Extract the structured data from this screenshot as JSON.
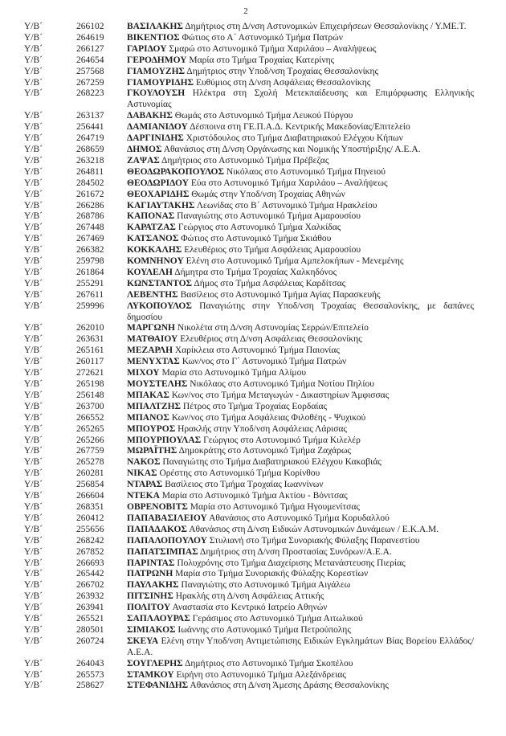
{
  "page": {
    "number": "2"
  },
  "list": {
    "entries": [
      {
        "rank": "Υ/Β´",
        "id": "266102",
        "name": "ΒΑΣΙΛΑΚΗΣ",
        "details": "Δημήτριος στη Δ/νση Αστυνομικών Επιχειρήσεων Θεσσαλονίκης / Υ.ΜΕ.Τ."
      },
      {
        "rank": "Υ/Β´",
        "id": "264619",
        "name": "ΒΙΚΕΝΤΙΟΣ",
        "details": "Φώτιος στο Α´ Αστυνομικό Τμήμα Πατρών"
      },
      {
        "rank": "Υ/Β´",
        "id": "266127",
        "name": "ΓΑΡΙΔΟΥ",
        "details": "Σμαρώ στο Αστυνομικό Τμήμα Χαριλάου – Αναλήψεως"
      },
      {
        "rank": "Υ/Β´",
        "id": "264654",
        "name": "ΓΕΡΟΔΗΜΟΥ",
        "details": "Μαρία στο Τμήμα Τροχαίας Κατερίνης"
      },
      {
        "rank": "Υ/Β´",
        "id": "257568",
        "name": "ΓΙΑΜΟΥΖΗΣ",
        "details": "Δημήτριος στην Υποδ/νση Τροχαίας Θεσσαλονίκης"
      },
      {
        "rank": "Υ/Β´",
        "id": "267259",
        "name": "ΓΙΑΜΟΥΡΙΔΗΣ",
        "details": "Ευθύμιος στη Δ/νση Ασφάλειας Θεσσαλονίκης"
      },
      {
        "rank": "Υ/Β´",
        "id": "268223",
        "name": "ΓΚΟΥΛΟΥΣΗ",
        "details": "Ηλέκτρα στη Σχολή Μετεκπαίδευσης και Επιμόρφωσης Ελληνικής Αστυνομίας"
      },
      {
        "rank": "Υ/Β´",
        "id": "263137",
        "name": "ΔΑΒΑΚΗΣ",
        "details": "Θωμάς στο Αστυνομικό Τμήμα Λευκού Πύργου"
      },
      {
        "rank": "Υ/Β´",
        "id": "256441",
        "name": "ΔΑΜΙΑΝΙΔΟΥ",
        "details": "Δέσποινα στη ΓΕ.Π.Α.Δ. Κεντρικής Μακεδονίας/Επιτελείο"
      },
      {
        "rank": "Υ/Β´",
        "id": "264719",
        "name": "ΔΑΡΓΙΝΙΔΗΣ",
        "details": "Χριστόδουλος στο Τμήμα Διαβατηριακού Ελέγχου Κήπων"
      },
      {
        "rank": "Υ/Β´",
        "id": "268659",
        "name": "ΔΗΜΟΣ",
        "details": "Αθανάσιος στη Δ/νση Οργάνωσης και Νομικής Υποστήριξης/ Α.Ε.Α."
      },
      {
        "rank": "Υ/Β´",
        "id": "263218",
        "name": "ΖΑΨΑΣ",
        "details": "Δημήτριος στο Αστυνομικό Τμήμα Πρέβεζας"
      },
      {
        "rank": "Υ/Β´",
        "id": "264811",
        "name": "ΘΕΟΔΩΡΑΚΟΠΟΥΛΟΣ",
        "details": "Νικόλαος στο Αστυνομικό Τμήμα Πηνειού"
      },
      {
        "rank": "Υ/Β´",
        "id": "284502",
        "name": "ΘΕΟΔΩΡΙΔΟΥ",
        "details": "Εύα στο Αστυνομικό Τμήμα Χαριλάου – Αναλήψεως"
      },
      {
        "rank": "Υ/Β´",
        "id": "261672",
        "name": "ΘΕΟΧΑΡΙΔΗΣ",
        "details": "Θωμάς στην Υποδ/νση Τροχαίας Αθηνών"
      },
      {
        "rank": "Υ/Β´",
        "id": "266286",
        "name": "ΚΑΓΙΑΥΤΑΚΗΣ",
        "details": "Λεωνίδας στο Β´ Αστυνομικό Τμήμα Ηρακλείου"
      },
      {
        "rank": "Υ/Β´",
        "id": "268786",
        "name": "ΚΑΠΟΝΑΣ",
        "details": "Παναγιώτης στο Αστυνομικό Τμήμα Αμαρουσίου"
      },
      {
        "rank": "Υ/Β´",
        "id": "267448",
        "name": "ΚΑΡΑΤΖΑΣ",
        "details": "Γεώργιος στο Αστυνομικό Τμήμα Χαλκίδας"
      },
      {
        "rank": "Υ/Β´",
        "id": "267469",
        "name": "ΚΑΤΣΑΝΟΣ",
        "details": "Φώτιος στο Αστυνομικό Τμήμα Σκιάθου"
      },
      {
        "rank": "Υ/Β´",
        "id": "266382",
        "name": "ΚΟΚΚΑΛΗΣ",
        "details": "Ελευθέριος στο Τμήμα Ασφάλειας Αμαρουσίου"
      },
      {
        "rank": "Υ/Β´",
        "id": "259798",
        "name": "ΚΟΜΝΗΝΟΥ",
        "details": "Ελένη στο Αστυνομικό Τμήμα Αμπελοκήπων - Μενεμένης"
      },
      {
        "rank": "Υ/Β´",
        "id": "261864",
        "name": "ΚΟΥΛΕΛΗ",
        "details": "Δήμητρα στο Τμήμα Τροχαίας Χαλκηδόνος"
      },
      {
        "rank": "Υ/Β´",
        "id": "255291",
        "name": "ΚΩΝΣΤΑΝΤΟΣ",
        "details": "Δήμος στο Τμήμα Ασφάλειας Καρδίτσας"
      },
      {
        "rank": "Υ/Β´",
        "id": "267611",
        "name": "ΛΕΒΕΝΤΗΣ",
        "details": "Βασίλειος στο Αστυνομικό Τμήμα Αγίας Παρασκευής"
      },
      {
        "rank": "Υ/Β´",
        "id": "259996",
        "name": "ΛΥΚΟΠΟΥΛΟΣ",
        "details": "Παναγιώτης στην Υποδ/νση Τροχαίας Θεσσαλονίκης, με δαπάνες δημοσίου"
      },
      {
        "rank": "Υ/Β´",
        "id": "262010",
        "name": "ΜΑΡΓΩΝΗ",
        "details": "Νικολέτα στη Δ/νση Αστυνομίας Σερρών/Επιτελείο"
      },
      {
        "rank": "Υ/Β´",
        "id": "263631",
        "name": "ΜΑΤΘΑΙΟΥ",
        "details": "Ελευθέριος στη Δ/νση Ασφάλειας Θεσσαλονίκης"
      },
      {
        "rank": "Υ/Β´",
        "id": "265161",
        "name": "ΜΕΖΑΡΛΗ",
        "details": "Χαρίκλεια στο Αστυνομικό Τμήμα Παιονίας"
      },
      {
        "rank": "Υ/Β´",
        "id": "260117",
        "name": "ΜΕΝΥΧΤΑΣ",
        "details": "Κων/νος στο Γ´ Αστυνομικό Τμήμα Πατρών"
      },
      {
        "rank": "Υ/Β´",
        "id": "272621",
        "name": "ΜΙΧΟΥ",
        "details": "Μαρία στο Αστυνομικό Τμήμα Αλίμου"
      },
      {
        "rank": "Υ/Β´",
        "id": "265198",
        "name": "ΜΟΥΣΤΕΛΗΣ",
        "details": "Νικόλαος στο Αστυνομικό Τμήμα Νοτίου Πηλίου"
      },
      {
        "rank": "Υ/Β´",
        "id": "256148",
        "name": "ΜΠΑΚΑΣ",
        "details": "Κων/νος στο Τμήμα Μεταγωγών - Δικαστηρίων Άμφισσας"
      },
      {
        "rank": "Υ/Β´",
        "id": "263700",
        "name": "ΜΠΑΛΤΖΗΣ",
        "details": "Πέτρος στο Τμήμα Τροχαίας Εορδαίας"
      },
      {
        "rank": "Υ/Β´",
        "id": "266552",
        "name": "ΜΠΑΝΟΣ",
        "details": "Κων/νος στο Τμήμα Ασφάλειας Φιλοθέης - Ψυχικού"
      },
      {
        "rank": "Υ/Β´",
        "id": "265265",
        "name": "ΜΠΟΥΡΟΣ",
        "details": "Ηρακλής στην Υποδ/νση Ασφάλειας Λάρισας"
      },
      {
        "rank": "Υ/Β´",
        "id": "265266",
        "name": "ΜΠΟΥΡΠΟΥΛΑΣ",
        "details": "Γεώργιος στο Αστυνομικό Τμήμα Κιλελέρ"
      },
      {
        "rank": "Υ/Β´",
        "id": "267759",
        "name": "ΜΩΡΑΪΤΗΣ",
        "details": "Δημοκράτης στο Αστυνομικό Τμήμα Ζαχάρως"
      },
      {
        "rank": "Υ/Β´",
        "id": "265278",
        "name": "ΝΑΚΟΣ",
        "details": "Παναγιώτης στο Τμήμα Διαβατηριακού Ελέγχου Κακαβιάς"
      },
      {
        "rank": "Υ/Β´",
        "id": "260281",
        "name": "ΝΙΚΑΣ",
        "details": "Ορέστης στο Αστυνομικό Τμήμα Κορίνθου"
      },
      {
        "rank": "Υ/Β´",
        "id": "256854",
        "name": "ΝΤΑΡΑΣ",
        "details": "Βασίλειος στο Τμήμα Τροχαίας Ιωαννίνων"
      },
      {
        "rank": "Υ/Β´",
        "id": "266604",
        "name": "ΝΤΕΚΑ",
        "details": "Μαρία στο Αστυνομικό Τμήμα Ακτίου - Βόνιτσας"
      },
      {
        "rank": "Υ/Β´",
        "id": "268351",
        "name": "ΟΒΡΕΝΟΒΙΤΣ",
        "details": "Μαρία στο Αστυνομικό Τμήμα Ηγουμενίτσας"
      },
      {
        "rank": "Υ/Β´",
        "id": "260412",
        "name": "ΠΑΠΑΒΑΣΙΛΕΙΟΥ",
        "details": "Αθανάσιος στο Αστυνομικό Τμήμα Κορυδαλλού"
      },
      {
        "rank": "Υ/Β´",
        "id": "255656",
        "name": "ΠΑΠΑΔΑΚΟΣ",
        "details": "Αθανάσιος στη Δ/νση Ειδικών Αστυνομικών Δυνάμεων / Ε.Κ.Α.Μ."
      },
      {
        "rank": "Υ/Β´",
        "id": "268242",
        "name": "ΠΑΠΑΛΟΠΟΥΛΟΥ",
        "details": "Στυλιανή στο Τμήμα Συνοριακής Φύλαξης Παρανεστίου"
      },
      {
        "rank": "Υ/Β´",
        "id": "267852",
        "name": "ΠΑΠΑΤΣΙΜΠΑΣ",
        "details": "Δημήτριος στη Δ/νση Προστασίας Συνόρων/Α.Ε.Α."
      },
      {
        "rank": "Υ/Β´",
        "id": "266693",
        "name": "ΠΑΡΙΝΤΑΣ",
        "details": "Πολυχρόνης στο Τμήμα Διαχείρισης Μετανάστευσης Πιερίας"
      },
      {
        "rank": "Υ/Β´",
        "id": "265442",
        "name": "ΠΑΤΡΩΝΗ",
        "details": "Μαρία στο Τμήμα Συνοριακής Φύλαξης Κορεστίων"
      },
      {
        "rank": "Υ/Β´",
        "id": "266702",
        "name": "ΠΑΥΛΑΚΗΣ",
        "details": "Παναγιώτης στο Αστυνομικό Τμήμα Αιγάλεω"
      },
      {
        "rank": "Υ/Β´",
        "id": "263932",
        "name": "ΠΙΤΣΙΝΗΣ",
        "details": "Ηρακλής στη Δ/νση Ασφάλειας Αττικής"
      },
      {
        "rank": "Υ/Β´",
        "id": "263941",
        "name": "ΠΟΛΙΤΟΥ",
        "details": "Αναστασία στο Κεντρικό Ιατρείο Αθηνών"
      },
      {
        "rank": "Υ/Β´",
        "id": "265521",
        "name": "ΣΑΠΛΑΟΥΡΑΣ",
        "details": "Γεράσιμος στο Αστυνομικό Τμήμα Αιτωλικού"
      },
      {
        "rank": "Υ/Β´",
        "id": "280501",
        "name": "ΣΙΜΙΑΚΟΣ",
        "details": "Ιωάννης στο Αστυνομικό Τμήμα Πετρούπολης"
      },
      {
        "rank": "Υ/Β´",
        "id": "260724",
        "name": "ΣΚΕΥΑ",
        "details": "Ελένη στην Υποδ/νση Αντιμετώπισης Ειδικών Εγκλημάτων Βίας Βορείου Ελλάδος/Α.Ε.Α."
      },
      {
        "rank": "Υ/Β´",
        "id": "264043",
        "name": "ΣΟΥΓΛΕΡΗΣ",
        "details": "Δημήτριος στο Αστυνομικό Τμήμα Σκοπέλου"
      },
      {
        "rank": "Υ/Β´",
        "id": "265573",
        "name": "ΣΤΑΜΚΟΥ",
        "details": "Ειρήνη στο Αστυνομικό Τμήμα Αλεξάνδρειας"
      },
      {
        "rank": "Υ/Β´",
        "id": "258627",
        "name": "ΣΤΕΦΑΝΙΔΗΣ",
        "details": "Αθανάσιος στη Δ/νση Άμεσης Δράσης Θεσσαλονίκης"
      }
    ]
  }
}
